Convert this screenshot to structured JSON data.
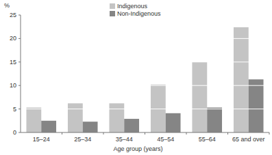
{
  "chart_data": {
    "type": "bar",
    "y_label": "%",
    "x_label": "Age group (years)",
    "categories": [
      "15–24",
      "25–34",
      "35–44",
      "45–54",
      "55–64",
      "65 and over"
    ],
    "series": [
      {
        "name": "Indigenous",
        "color": "#c4c4c4",
        "values": [
          5.3,
          6.2,
          6.2,
          10.2,
          15.0,
          22.4
        ]
      },
      {
        "name": "Non-Indigenous",
        "color": "#858585",
        "values": [
          2.5,
          2.3,
          2.9,
          4.1,
          5.3,
          11.3
        ]
      }
    ],
    "ylim": [
      0,
      25
    ],
    "yticks": [
      0,
      5,
      10,
      15,
      20,
      25
    ],
    "grid": true,
    "legend": "top"
  }
}
